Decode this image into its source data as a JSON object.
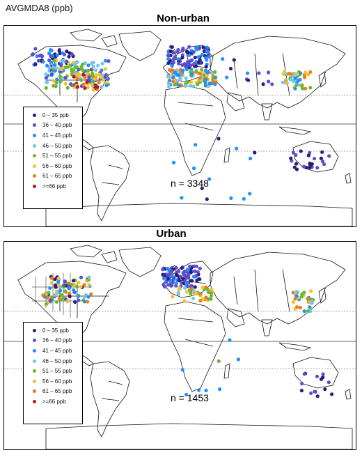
{
  "metric_label": "AVGMDA8 (ppb)",
  "panels": [
    {
      "title": "Non-urban",
      "count": "n = 3348"
    },
    {
      "title": "Urban",
      "count": "n = 1453"
    }
  ],
  "legend": [
    {
      "label": "0 – 35  ppb",
      "color": "#2e1a7a"
    },
    {
      "label": "36 – 40  ppb",
      "color": "#5a4fcf"
    },
    {
      "label": "41 – 45  ppb",
      "color": "#1e90ff"
    },
    {
      "label": "46 – 50  ppb",
      "color": "#79c4e6"
    },
    {
      "label": "51 – 55  ppb",
      "color": "#6bb82e"
    },
    {
      "label": "56 – 60  ppb",
      "color": "#f2c230"
    },
    {
      "label": "61 – 65  ppb",
      "color": "#ef7b16"
    },
    {
      "label": ">=66  ppb",
      "color": "#b01c1c"
    }
  ]
}
